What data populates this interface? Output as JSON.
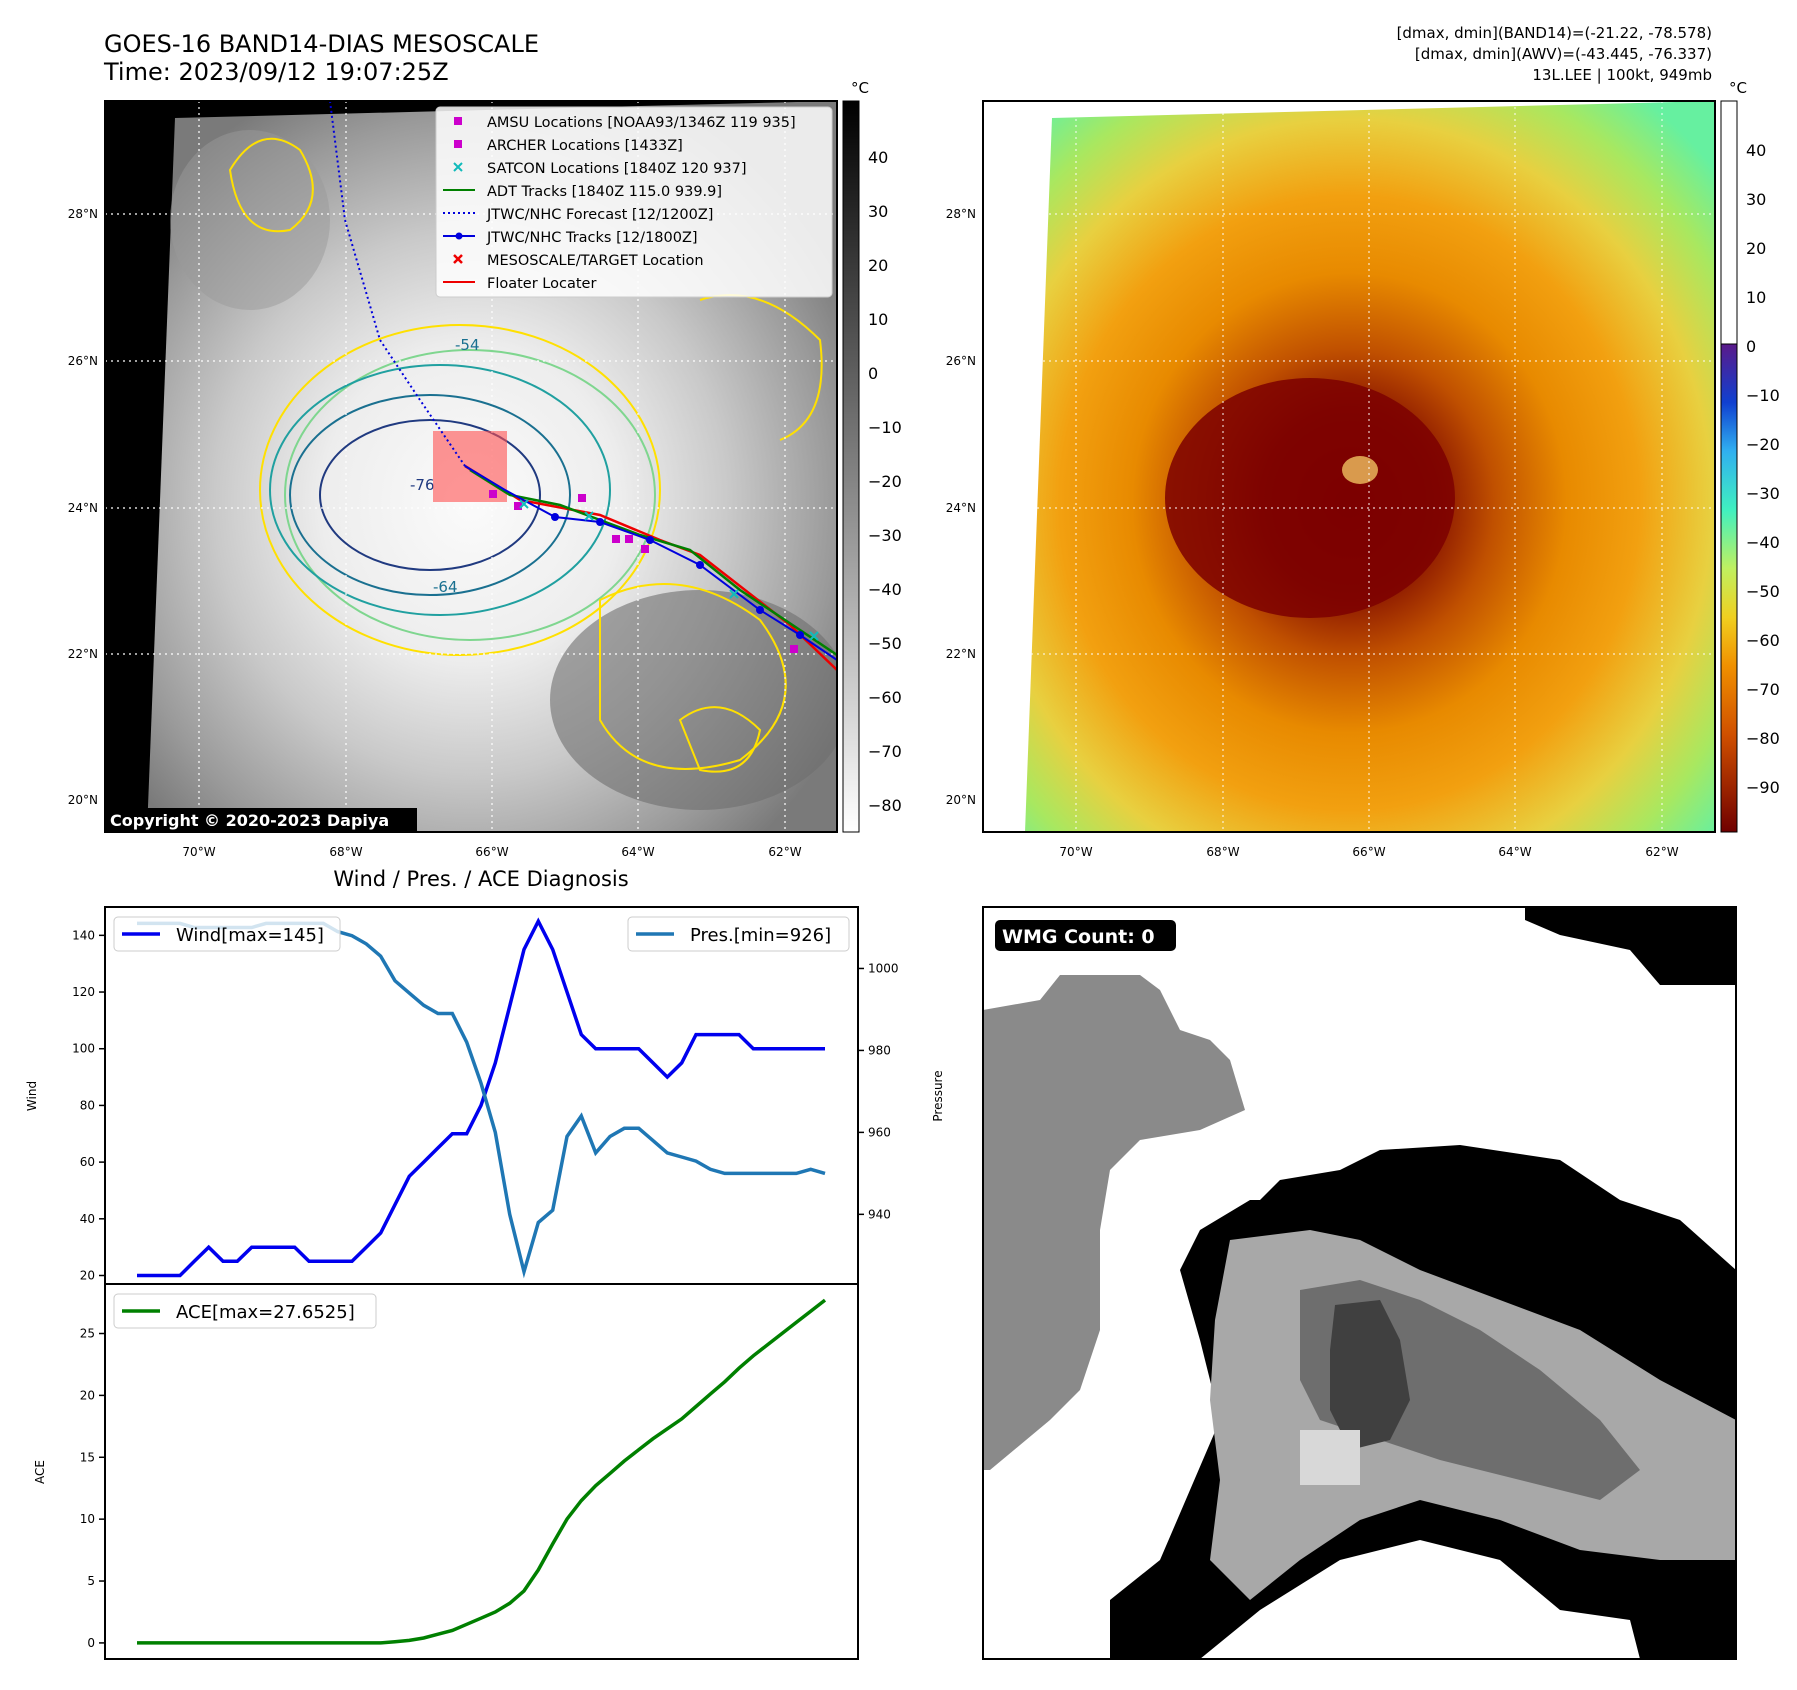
{
  "header": {
    "title_line1": "GOES-16 BAND14-DIAS MESOSCALE",
    "title_line2": "Time: 2023/09/12 19:07:25Z",
    "info_line1": "[dmax, dmin](BAND14)=(-21.22, -78.578)",
    "info_line2": "[dmax, dmin](AWV)=(-43.445, -76.337)",
    "info_line3": "13L.LEE | 100kt, 949mb"
  },
  "map_axes": {
    "lat_labels": [
      "28°N",
      "26°N",
      "24°N",
      "22°N",
      "20°N"
    ],
    "lon_labels": [
      "70°W",
      "68°W",
      "66°W",
      "64°W",
      "62°W"
    ]
  },
  "ir_panel": {
    "colorbar_unit": "°C",
    "colorbar_ticks": [
      "40",
      "30",
      "20",
      "10",
      "0",
      "−10",
      "−20",
      "−30",
      "−40",
      "−50",
      "−60",
      "−70",
      "−80"
    ],
    "contour_labels": [
      "-54",
      "-64",
      "-76",
      "-64",
      "-64"
    ],
    "copyright": "Copyright © 2020-2023 Dapiya",
    "legend": [
      {
        "label": "AMSU Locations [NOAA93/1346Z 119 935]",
        "marker": "square",
        "color": "#cc00cc"
      },
      {
        "label": "ARCHER Locations [1433Z]",
        "marker": "square",
        "color": "#cc00cc"
      },
      {
        "label": "SATCON Locations [1840Z 120 937]",
        "marker": "x",
        "color": "#11bbbb"
      },
      {
        "label": "ADT Tracks [1840Z 115.0 939.9]",
        "marker": "line",
        "color": "#008000"
      },
      {
        "label": "JTWC/NHC Forecast [12/1200Z]",
        "marker": "dotted",
        "color": "#0000dd"
      },
      {
        "label": "JTWC/NHC Tracks [12/1800Z]",
        "marker": "line-dot",
        "color": "#0000dd"
      },
      {
        "label": "MESOSCALE/TARGET Location",
        "marker": "x",
        "color": "#ee0000"
      },
      {
        "label": "Floater Locater",
        "marker": "line",
        "color": "#ee0000"
      }
    ]
  },
  "awv_panel": {
    "colorbar_unit": "°C",
    "colorbar_ticks": [
      "40",
      "30",
      "20",
      "10",
      "0",
      "−10",
      "−20",
      "−30",
      "−40",
      "−50",
      "−60",
      "−70",
      "−80",
      "−90"
    ]
  },
  "wmg_panel": {
    "badge": "WMG Count: 0"
  },
  "chart_data": [
    {
      "type": "line",
      "title": "Wind / Pres. / ACE Diagnosis",
      "ylabel": "Wind",
      "ylabel_right": "Pressure",
      "ylim": [
        17,
        150
      ],
      "ylim_right": [
        923,
        1015
      ],
      "yticks": [
        20,
        40,
        60,
        80,
        100,
        120,
        140
      ],
      "yticks_right": [
        940,
        960,
        980,
        1000
      ],
      "x": [
        0,
        1,
        2,
        3,
        4,
        5,
        6,
        7,
        8,
        9,
        10,
        11,
        12,
        13,
        14,
        15,
        16,
        17,
        18,
        19,
        20,
        21,
        22,
        23,
        24,
        25,
        26,
        27,
        28,
        29,
        30,
        31,
        32,
        33,
        34,
        35,
        36,
        37,
        38,
        39,
        40,
        41,
        42,
        43,
        44,
        45,
        46,
        47,
        48
      ],
      "series": [
        {
          "name": "Wind[max=145]",
          "axis": "left",
          "color": "#0000ee",
          "values": [
            20,
            20,
            20,
            20,
            25,
            30,
            25,
            25,
            30,
            30,
            30,
            30,
            25,
            25,
            25,
            25,
            30,
            35,
            45,
            55,
            60,
            65,
            70,
            70,
            80,
            95,
            115,
            135,
            145,
            135,
            120,
            105,
            100,
            100,
            100,
            100,
            95,
            90,
            95,
            105,
            105,
            105,
            105,
            100,
            100,
            100,
            100,
            100,
            100
          ]
        },
        {
          "name": "Pres.[min=926]",
          "axis": "right",
          "color": "#1f77b4",
          "values": [
            1011,
            1011,
            1011,
            1011,
            1010,
            1010,
            1010,
            1010,
            1010,
            1011,
            1011,
            1011,
            1011,
            1011,
            1009,
            1008,
            1006,
            1003,
            997,
            994,
            991,
            989,
            989,
            982,
            972,
            960,
            940,
            926,
            938,
            941,
            959,
            964,
            955,
            959,
            961,
            961,
            958,
            955,
            954,
            953,
            951,
            950,
            950,
            950,
            950,
            950,
            950,
            951,
            950
          ]
        }
      ]
    },
    {
      "type": "line",
      "ylabel": "ACE",
      "ylim": [
        -1.3,
        29
      ],
      "yticks": [
        0,
        5,
        10,
        15,
        20,
        25
      ],
      "x": [
        0,
        1,
        2,
        3,
        4,
        5,
        6,
        7,
        8,
        9,
        10,
        11,
        12,
        13,
        14,
        15,
        16,
        17,
        18,
        19,
        20,
        21,
        22,
        23,
        24,
        25,
        26,
        27,
        28,
        29,
        30,
        31,
        32,
        33,
        34,
        35,
        36,
        37,
        38,
        39,
        40,
        41,
        42,
        43,
        44,
        45,
        46,
        47,
        48
      ],
      "series": [
        {
          "name": "ACE[max=27.6525]",
          "color": "#008000",
          "values": [
            0,
            0,
            0,
            0,
            0,
            0,
            0,
            0,
            0,
            0,
            0,
            0,
            0,
            0,
            0,
            0,
            0,
            0,
            0.1,
            0.2,
            0.4,
            0.7,
            1.0,
            1.5,
            2.0,
            2.5,
            3.2,
            4.2,
            5.9,
            8.0,
            10.0,
            11.5,
            12.7,
            13.7,
            14.7,
            15.6,
            16.5,
            17.3,
            18.1,
            19.1,
            20.1,
            21.1,
            22.2,
            23.2,
            24.1,
            25.0,
            25.9,
            26.8,
            27.7
          ]
        }
      ]
    }
  ]
}
